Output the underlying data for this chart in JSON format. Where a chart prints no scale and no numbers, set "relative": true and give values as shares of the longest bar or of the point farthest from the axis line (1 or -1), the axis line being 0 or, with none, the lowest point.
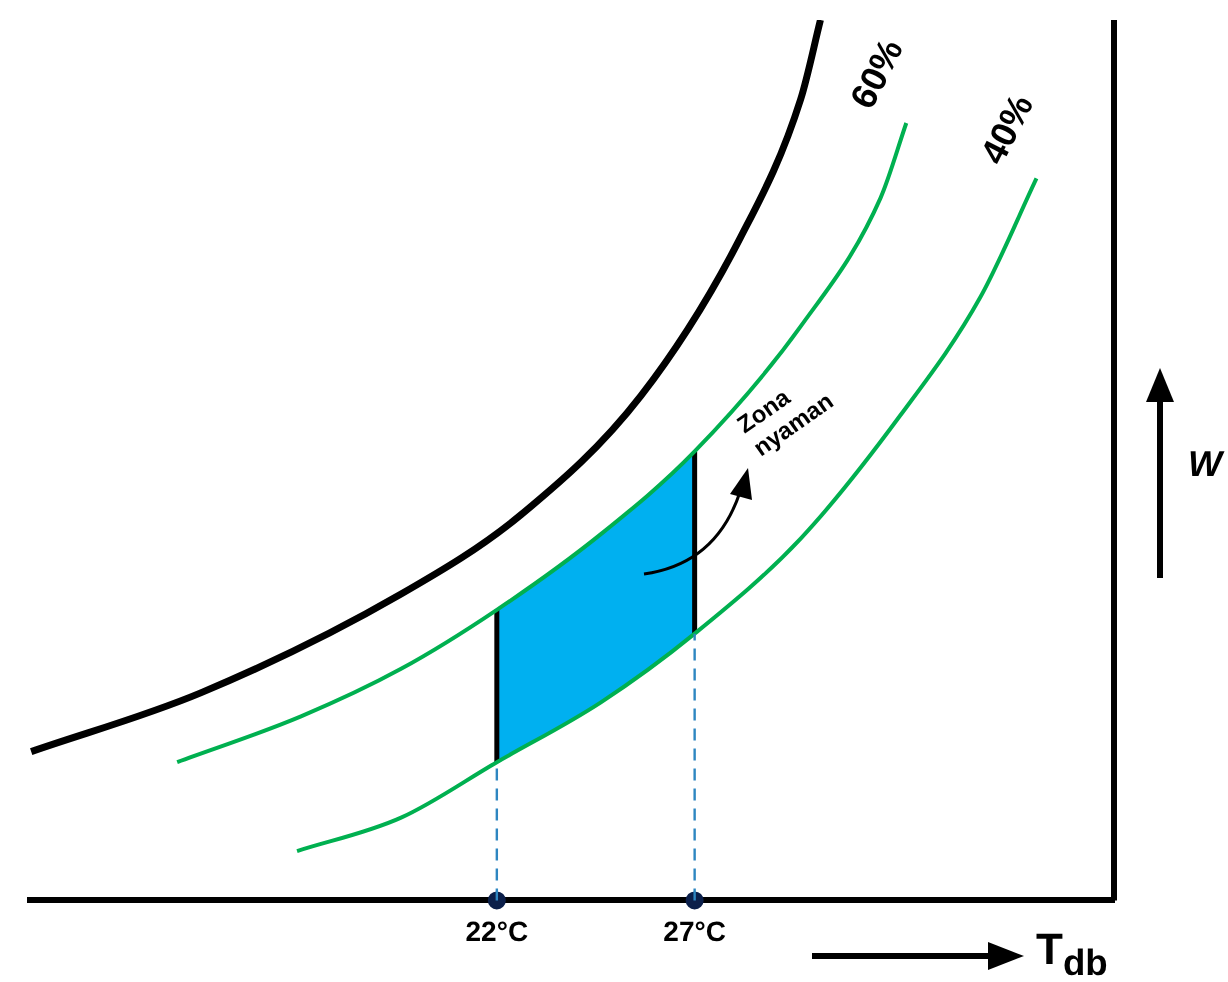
{
  "chart_data": {
    "type": "line",
    "relative": true,
    "xlabel": "T$_{db}$",
    "ylabel": "W",
    "xlim": [
      10.2,
      37.6
    ],
    "xticks": [
      {
        "value": 22,
        "label": "22°C"
      },
      {
        "value": 27,
        "label": "27°C"
      }
    ],
    "grid": false,
    "legend": false,
    "series": [
      {
        "color": "#000000",
        "x": [
          10.23,
          14.53,
          19.58,
          22.61,
          25.64,
          28.16,
          29.68,
          30.18
        ],
        "values": [
          0.169,
          0.236,
          0.348,
          0.438,
          0.573,
          0.753,
          0.91,
          1
        ]
      },
      {
        "name": "60%",
        "color": "#00b050",
        "x": [
          13.92,
          17.05,
          19.58,
          22,
          24.63,
          27,
          29.68,
          31.7,
          32.35
        ],
        "values": [
          0.157,
          0.209,
          0.263,
          0.33,
          0.416,
          0.51,
          0.652,
          0.798,
          0.883
        ]
      },
      {
        "name": "40%",
        "color": "#00b050",
        "x": [
          16.95,
          19.58,
          22,
          24.63,
          27,
          29.68,
          32.2,
          34.22,
          35.64
        ],
        "values": [
          0.056,
          0.094,
          0.157,
          0.225,
          0.303,
          0.411,
          0.551,
          0.685,
          0.82
        ]
      },
      {
        "type": "line",
        "color": "#00b0f0",
        "x": [
          22,
          24.63,
          27
        ],
        "values": [
          null,
          null,
          null
        ],
        "lower": [
          0.157,
          0.225,
          0.303
        ],
        "upper": [
          0.33,
          0.416,
          0.51
        ]
      },
      {
        "color": "#000000",
        "x": [
          22,
          22
        ],
        "values": [
          0.157,
          0.33
        ]
      },
      {
        "color": "#000000",
        "x": [
          27,
          27
        ],
        "values": [
          0.303,
          0.51
        ]
      },
      {
        "type": "scatter",
        "color": "#0b1f4a",
        "marker": "circle",
        "x": [
          22,
          27
        ],
        "values": [
          0,
          0
        ]
      }
    ],
    "ref_lines": [
      {
        "axis": "x",
        "value": 22,
        "color": "#2e86c1",
        "line_style": "dashed"
      },
      {
        "axis": "x",
        "value": 27,
        "color": "#2e86c1",
        "line_style": "dashed"
      }
    ],
    "annotations": [
      "Zona nyaman"
    ]
  }
}
